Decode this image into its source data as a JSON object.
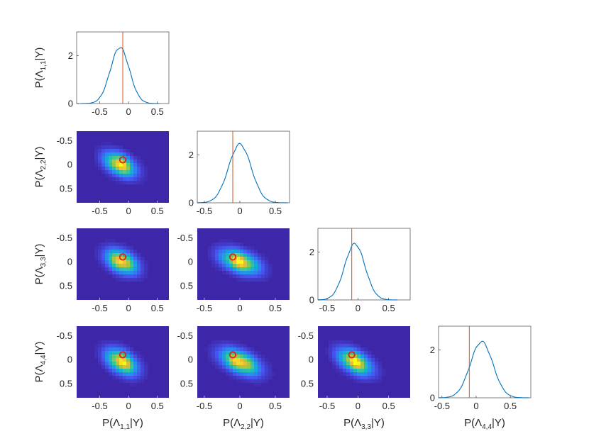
{
  "colors": {
    "density_line": "#0072bd",
    "marker_vline": "#d95319",
    "truth_circle": "#e0201a",
    "heat_background": "#3e26a8",
    "axes": "#262626"
  },
  "chart_data": [
    {
      "type": "line",
      "row": 0,
      "col": 0,
      "xlim": [
        -0.9,
        0.7
      ],
      "ylim": [
        0,
        3
      ],
      "xticks": [
        -0.5,
        0,
        0.5
      ],
      "yticks": [
        0,
        2
      ],
      "xtick_labels": [
        "-0.5",
        "0",
        "0.5"
      ],
      "ytick_labels": [
        "0",
        "2"
      ],
      "ylabel": "P(Λ|Y)",
      "ylabel_sub": "1,1",
      "mean": -0.15,
      "std": 0.165,
      "peak": 2.35,
      "vline": -0.1
    },
    {
      "type": "heatmap",
      "row": 1,
      "col": 0,
      "xlim": [
        -0.9,
        0.7
      ],
      "ylim": [
        -0.7,
        0.8
      ],
      "y_reversed": true,
      "xticks": [
        -0.5,
        0,
        0.5
      ],
      "yticks": [
        -0.5,
        0,
        0.5
      ],
      "xtick_labels": [
        "-0.5",
        "0",
        "0.5"
      ],
      "ytick_labels": [
        "-0.5",
        "0",
        "0.5"
      ],
      "ylabel": "P(Λ|Y)",
      "ylabel_sub": "2,2",
      "center": [
        -0.15,
        0.0
      ],
      "spread": [
        0.17,
        0.16
      ],
      "corr": 0.45,
      "truth": [
        -0.1,
        -0.1
      ]
    },
    {
      "type": "line",
      "row": 1,
      "col": 1,
      "xlim": [
        -0.6,
        0.7
      ],
      "ylim": [
        0,
        3
      ],
      "xticks": [
        -0.5,
        0,
        0.5
      ],
      "yticks": [
        0,
        2
      ],
      "xtick_labels": [
        "-0.5",
        "0",
        "0.5"
      ],
      "ytick_labels": [
        "0",
        "2"
      ],
      "mean": 0.0,
      "std": 0.16,
      "peak": 2.45,
      "vline": -0.1
    },
    {
      "type": "heatmap",
      "row": 2,
      "col": 0,
      "xlim": [
        -0.9,
        0.7
      ],
      "ylim": [
        -0.7,
        0.8
      ],
      "y_reversed": true,
      "xticks": [
        -0.5,
        0,
        0.5
      ],
      "yticks": [
        -0.5,
        0,
        0.5
      ],
      "xtick_labels": [
        "-0.5",
        "0",
        "0.5"
      ],
      "ytick_labels": [
        "-0.5",
        "0",
        "0.5"
      ],
      "ylabel": "P(Λ|Y)",
      "ylabel_sub": "3,3",
      "center": [
        -0.12,
        0.0
      ],
      "spread": [
        0.17,
        0.16
      ],
      "corr": 0.4,
      "truth": [
        -0.1,
        -0.1
      ]
    },
    {
      "type": "heatmap",
      "row": 2,
      "col": 1,
      "xlim": [
        -0.6,
        0.7
      ],
      "ylim": [
        -0.7,
        0.8
      ],
      "y_reversed": true,
      "xticks": [
        -0.5,
        0,
        0.5
      ],
      "yticks": [
        -0.5,
        0,
        0.5
      ],
      "xtick_labels": [
        "-0.5",
        "0",
        "0.5"
      ],
      "ytick_labels": [
        "-0.5",
        "0",
        "0.5"
      ],
      "center": [
        0.0,
        0.0
      ],
      "spread": [
        0.17,
        0.16
      ],
      "corr": 0.45,
      "truth": [
        -0.1,
        -0.1
      ]
    },
    {
      "type": "line",
      "row": 2,
      "col": 2,
      "xlim": [
        -0.65,
        0.85
      ],
      "ylim": [
        0,
        3
      ],
      "xticks": [
        -0.5,
        0,
        0.5
      ],
      "yticks": [
        0,
        2
      ],
      "xtick_labels": [
        "-0.5",
        "0",
        "0.5"
      ],
      "ytick_labels": [
        "0",
        "2"
      ],
      "mean": -0.05,
      "std": 0.165,
      "peak": 2.35,
      "vline": -0.1
    },
    {
      "type": "heatmap",
      "row": 3,
      "col": 0,
      "xlim": [
        -0.9,
        0.7
      ],
      "ylim": [
        -0.7,
        0.8
      ],
      "y_reversed": true,
      "xticks": [
        -0.5,
        0,
        0.5
      ],
      "yticks": [
        -0.5,
        0,
        0.5
      ],
      "xtick_labels": [
        "-0.5",
        "0",
        "0.5"
      ],
      "ytick_labels": [
        "-0.5",
        "0",
        "0.5"
      ],
      "ylabel": "P(Λ|Y)",
      "ylabel_sub": "4,4",
      "xlabel": "P(Λ|Y)",
      "xlabel_sub": "1,1",
      "center": [
        -0.12,
        0.05
      ],
      "spread": [
        0.17,
        0.17
      ],
      "corr": 0.45,
      "truth": [
        -0.1,
        -0.1
      ]
    },
    {
      "type": "heatmap",
      "row": 3,
      "col": 1,
      "xlim": [
        -0.6,
        0.7
      ],
      "ylim": [
        -0.7,
        0.8
      ],
      "y_reversed": true,
      "xticks": [
        -0.5,
        0,
        0.5
      ],
      "yticks": [
        -0.5,
        0,
        0.5
      ],
      "xtick_labels": [
        "-0.5",
        "0",
        "0.5"
      ],
      "ytick_labels": [
        "-0.5",
        "0",
        "0.5"
      ],
      "xlabel": "P(Λ|Y)",
      "xlabel_sub": "2,2",
      "center": [
        0.0,
        0.05
      ],
      "spread": [
        0.17,
        0.17
      ],
      "corr": 0.5,
      "truth": [
        -0.1,
        -0.1
      ]
    },
    {
      "type": "heatmap",
      "row": 3,
      "col": 2,
      "xlim": [
        -0.65,
        0.85
      ],
      "ylim": [
        -0.7,
        0.8
      ],
      "y_reversed": true,
      "xticks": [
        -0.5,
        0,
        0.5
      ],
      "yticks": [
        -0.5,
        0,
        0.5
      ],
      "xtick_labels": [
        "-0.5",
        "0",
        "0.5"
      ],
      "ytick_labels": [
        "-0.5",
        "0",
        "0.5"
      ],
      "xlabel": "P(Λ|Y)",
      "xlabel_sub": "3,3",
      "center": [
        -0.05,
        0.05
      ],
      "spread": [
        0.17,
        0.17
      ],
      "corr": 0.5,
      "truth": [
        -0.1,
        -0.1
      ]
    },
    {
      "type": "line",
      "row": 3,
      "col": 3,
      "xlim": [
        -0.55,
        0.8
      ],
      "ylim": [
        0,
        3
      ],
      "xticks": [
        -0.5,
        0,
        0.5
      ],
      "yticks": [
        0,
        2
      ],
      "xtick_labels": [
        "-0.5",
        "0",
        "0.5"
      ],
      "ytick_labels": [
        "0",
        "2"
      ],
      "xlabel": "P(Λ|Y)",
      "xlabel_sub": "4,4",
      "mean": 0.08,
      "std": 0.165,
      "peak": 2.35,
      "vline": -0.1
    }
  ]
}
